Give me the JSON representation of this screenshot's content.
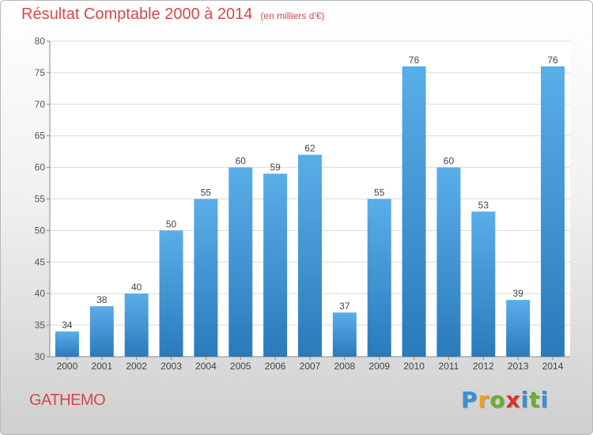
{
  "header": {
    "title": "Résultat Comptable 2000 à 2014",
    "subtitle": "(en milliers d'€)"
  },
  "footer": {
    "commune": "GATHEMO",
    "logo_text": "Proxiti"
  },
  "colors": {
    "bar_light": "#5aaee8",
    "bar_dark": "#2a7abc",
    "title": "#d24a4a",
    "grid": "#d9d9d9"
  },
  "chart_data": {
    "type": "bar",
    "title": "Résultat Comptable 2000 à 2014",
    "xlabel": "",
    "ylabel": "",
    "ylim": [
      30,
      80
    ],
    "yticks": [
      30,
      35,
      40,
      45,
      50,
      55,
      60,
      65,
      70,
      75,
      80
    ],
    "grid": true,
    "categories": [
      "2000",
      "2001",
      "2002",
      "2003",
      "2004",
      "2005",
      "2006",
      "2007",
      "2008",
      "2009",
      "2010",
      "2011",
      "2012",
      "2013",
      "2014"
    ],
    "values": [
      34,
      38,
      40,
      50,
      55,
      60,
      59,
      62,
      37,
      55,
      76,
      60,
      53,
      39,
      76
    ]
  }
}
